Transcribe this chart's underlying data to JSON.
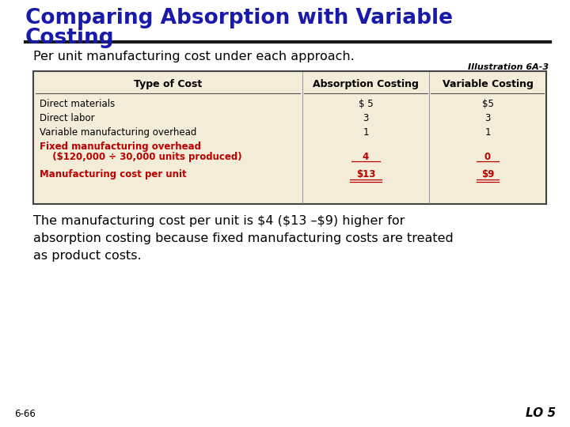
{
  "title_line1": "Comparing Absorption with Variable",
  "title_line2": "Costing",
  "title_color": "#1a1aaa",
  "subtitle": "Per unit manufacturing cost under each approach.",
  "illustration": "Illustration 6A-3",
  "bg_color": "#FFFFFF",
  "table_bg": "#F2ECD8",
  "table_border": "#444444",
  "header_row": [
    "Type of Cost",
    "Absorption Costing",
    "Variable Costing"
  ],
  "rows": [
    {
      "label": "Direct materials",
      "absorption": "$ 5",
      "variable": "$5",
      "label_color": "#000000",
      "val_color": "#000000"
    },
    {
      "label": "Direct labor",
      "absorption": "3",
      "variable": "3",
      "label_color": "#000000",
      "val_color": "#000000"
    },
    {
      "label": "Variable manufacturing overhead",
      "absorption": "1",
      "variable": "1",
      "label_color": "#000000",
      "val_color": "#000000"
    },
    {
      "label": "Fixed manufacturing overhead",
      "label2": "  ($120,000 ÷ 30,000 units produced)",
      "absorption": "4",
      "variable": "0",
      "label_color": "#BB0000",
      "val_color": "#BB0000",
      "underline_val": true
    },
    {
      "label": "Manufacturing cost per unit",
      "absorption": "$13",
      "variable": "$9",
      "label_color": "#BB0000",
      "val_color": "#BB0000",
      "double_underline": true
    }
  ],
  "footer_text": "The manufacturing cost per unit is $4 ($13 –$9) higher for\nabsorption costing because fixed manufacturing costs are treated\nas product costs.",
  "footer_color": "#000000",
  "page_num": "6-66",
  "lo_text": "LO 5",
  "separator_color": "#1a1a1a"
}
